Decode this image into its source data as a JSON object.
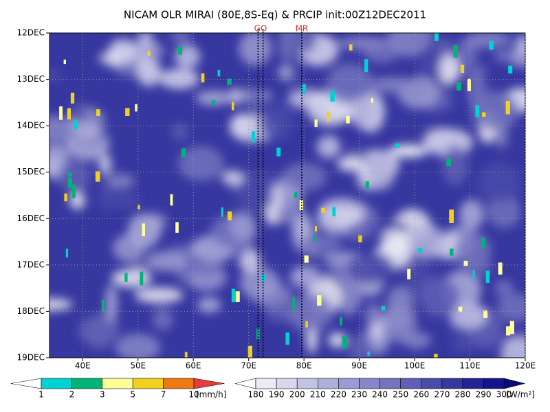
{
  "chart_data": {
    "type": "hovmoller",
    "title": "NICAM OLR MIRAI (80E,8S-Eq) & PRCIP init:00Z12DEC2011",
    "xlim": [
      34,
      120
    ],
    "xticks": [
      {
        "value": 40,
        "label": "40E"
      },
      {
        "value": 50,
        "label": "50E"
      },
      {
        "value": 60,
        "label": "60E"
      },
      {
        "value": 70,
        "label": "70E"
      },
      {
        "value": 80,
        "label": "80E"
      },
      {
        "value": 90,
        "label": "90E"
      },
      {
        "value": 100,
        "label": "100E"
      },
      {
        "value": 110,
        "label": "110E"
      },
      {
        "value": 120,
        "label": "120E"
      }
    ],
    "categories": [
      "12DEC",
      "13DEC",
      "14DEC",
      "15DEC",
      "16DEC",
      "17DEC",
      "18DEC",
      "19DEC"
    ],
    "grid": true,
    "markers": [
      {
        "label": "GO",
        "x": [
          71.7,
          72.6
        ],
        "color": "#e03030"
      },
      {
        "label": "MR",
        "x": [
          79.6
        ],
        "color": "#e03030"
      }
    ],
    "precip_colorbar": {
      "levels": [
        1,
        2,
        3,
        5,
        7,
        10
      ],
      "unit": "[mm/h]",
      "colors": [
        "#ffffff",
        "#00d2d2",
        "#00b478",
        "#ffff9a",
        "#f0d21e",
        "#f07814",
        "#e63c3c"
      ]
    },
    "olr_colorbar": {
      "levels": [
        180,
        190,
        200,
        210,
        220,
        230,
        240,
        250,
        260,
        270,
        280,
        290,
        300
      ],
      "unit": "[W/m²]",
      "colors": [
        "#ffffff",
        "#ebebf5",
        "#d7d7ee",
        "#c3c3e6",
        "#afafdc",
        "#9b9bd2",
        "#8787c8",
        "#7373be",
        "#5f5fb4",
        "#4b4baa",
        "#3737a0",
        "#232396",
        "#14148c",
        "#0a0a78"
      ]
    }
  }
}
